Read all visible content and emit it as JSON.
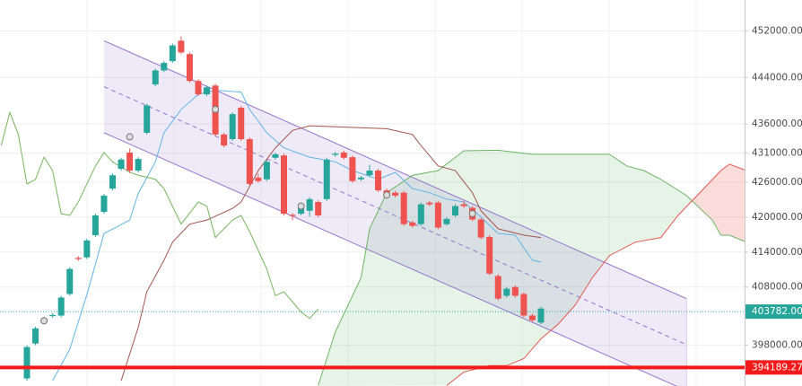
{
  "chart_data": {
    "type": "candlestick",
    "ylim": [
      391000,
      457300
    ],
    "yticks": [
      {
        "value": 452000,
        "label": "452000.00"
      },
      {
        "value": 444000,
        "label": "444000.00"
      },
      {
        "value": 436000,
        "label": "436000.00"
      },
      {
        "value": 431000,
        "label": "431000.00"
      },
      {
        "value": 426000,
        "label": "426000.00"
      },
      {
        "value": 420000,
        "label": "420000.00"
      },
      {
        "value": 414000,
        "label": "414000.00"
      },
      {
        "value": 408000,
        "label": "408000.00"
      },
      {
        "value": 398000,
        "label": "398000.00"
      }
    ],
    "grid": true,
    "up_color": "#26a69a",
    "down_color": "#ef5350",
    "candles": {
      "open": [
        392300,
        398300,
        401900,
        403000,
        403100,
        406800,
        413000,
        413100,
        416900,
        420900,
        424900,
        428300,
        431100,
        428000,
        434500,
        442800,
        445200,
        446800,
        450300,
        448000,
        443400,
        441100,
        442600,
        434200,
        433400,
        438800,
        433400,
        426800,
        426500,
        430200,
        430600,
        420400,
        420600,
        421100,
        422600,
        423100,
        430700,
        431100,
        430300,
        426500,
        427200,
        428000,
        424600,
        424200,
        424200,
        419100,
        418800,
        422500,
        422500,
        418800,
        420300,
        422200,
        421600,
        419600,
        416600,
        409900,
        406500,
        408000,
        406800,
        403100,
        401900
      ],
      "high": [
        398000,
        401200,
        402900,
        403500,
        406500,
        411400,
        413300,
        416300,
        420600,
        424000,
        427500,
        430200,
        431800,
        430300,
        439500,
        445500,
        446800,
        449800,
        451000,
        448300,
        443700,
        442600,
        442900,
        434500,
        438000,
        439100,
        433700,
        427500,
        429800,
        431100,
        430900,
        420700,
        422500,
        423400,
        422900,
        430200,
        431200,
        431400,
        430600,
        427100,
        429000,
        428300,
        424900,
        424500,
        424500,
        419400,
        422500,
        422800,
        422800,
        420000,
        422200,
        422800,
        421900,
        419900,
        416900,
        410200,
        408000,
        408300,
        407100,
        403400,
        404600
      ],
      "low": [
        391900,
        398000,
        401600,
        402700,
        402800,
        406500,
        412500,
        412800,
        416600,
        420600,
        424600,
        428000,
        427600,
        427700,
        434200,
        442500,
        444900,
        446500,
        448000,
        443100,
        440800,
        440800,
        433900,
        432000,
        433100,
        433100,
        425400,
        425900,
        426200,
        429900,
        420300,
        419500,
        420300,
        420100,
        420000,
        422800,
        430400,
        429900,
        425900,
        426200,
        426900,
        424300,
        423400,
        423400,
        418500,
        418200,
        418500,
        421900,
        417900,
        418500,
        420000,
        421600,
        419300,
        416200,
        410000,
        405700,
        406200,
        406200,
        402800,
        402000,
        401600
      ],
      "close": [
        397700,
        400900,
        402600,
        403200,
        406200,
        411100,
        412800,
        416000,
        420300,
        423700,
        427200,
        429900,
        428000,
        430000,
        439200,
        445200,
        446500,
        449500,
        448300,
        443400,
        441100,
        442300,
        434200,
        432300,
        437700,
        433400,
        425700,
        426200,
        429500,
        430800,
        420600,
        420200,
        422200,
        423100,
        420300,
        429900,
        430900,
        430200,
        426200,
        426800,
        428000,
        424600,
        423700,
        423700,
        418800,
        418500,
        422200,
        422200,
        418200,
        419700,
        421900,
        421900,
        419600,
        416500,
        410300,
        406000,
        407700,
        406500,
        403100,
        402300,
        404300
      ]
    },
    "lines": [
      {
        "color": "#62b4e6",
        "x": [
          3,
          5,
          7,
          9,
          12,
          13,
          15,
          16,
          18,
          20,
          22,
          25,
          26,
          28,
          30,
          33,
          36,
          38,
          41,
          43,
          45,
          47,
          49,
          51,
          53,
          55,
          57,
          59,
          60
        ],
        "values": [
          391900,
          397300,
          406700,
          417200,
          419500,
          424100,
          429500,
          434500,
          438500,
          441100,
          441800,
          441500,
          438500,
          434500,
          431900,
          430300,
          429500,
          428000,
          426500,
          427700,
          424900,
          424200,
          423100,
          422600,
          420000,
          417200,
          416900,
          412600,
          412300
        ]
      },
      {
        "color": "#a3554d",
        "x": [
          11,
          13,
          14,
          16,
          17,
          19,
          21,
          24,
          25,
          27,
          29,
          31,
          33,
          42,
          45,
          46,
          48,
          50,
          52,
          53,
          55,
          58,
          60
        ],
        "values": [
          391900,
          401100,
          407200,
          412600,
          415700,
          418800,
          419500,
          421500,
          422600,
          428000,
          431900,
          434900,
          435700,
          435200,
          434200,
          432300,
          428800,
          428000,
          424200,
          421100,
          418000,
          416900,
          416500
        ]
      },
      {
        "color": "#76b45e",
        "x": [
          -3,
          -2,
          -1,
          0,
          1,
          2,
          3,
          4,
          5,
          6,
          8,
          9,
          10,
          12,
          13,
          15,
          16,
          18,
          20,
          21,
          22,
          24,
          25,
          26,
          28,
          29,
          30,
          32,
          33,
          34
        ],
        "values": [
          432300,
          438000,
          434200,
          425700,
          426500,
          430300,
          428000,
          420600,
          420300,
          422600,
          428800,
          431100,
          429500,
          427700,
          427200,
          426500,
          424900,
          418800,
          422600,
          421900,
          416500,
          419500,
          420300,
          417500,
          411100,
          406500,
          407200,
          403700,
          402600,
          404200
        ]
      }
    ],
    "cloud": {
      "span_a": {
        "color": "#6cb562",
        "x": [
          34,
          36,
          39,
          40,
          42,
          45,
          48,
          51,
          55,
          59,
          68,
          70,
          72,
          74,
          77,
          80,
          81,
          82,
          84
        ],
        "values": [
          391100,
          400300,
          409600,
          418000,
          424200,
          427200,
          428000,
          431400,
          431500,
          430800,
          430800,
          428800,
          428000,
          426500,
          423700,
          419500,
          416900,
          416900,
          415700
        ]
      },
      "span_b": {
        "color": "#e3574f",
        "x": [
          49,
          51,
          54,
          56,
          58,
          60,
          62,
          64,
          66,
          68,
          71,
          74,
          76,
          79,
          81,
          82,
          84
        ],
        "values": [
          391100,
          393400,
          394500,
          394500,
          395700,
          399100,
          401600,
          404900,
          409600,
          413400,
          415700,
          416500,
          420300,
          424900,
          428000,
          429100,
          428000
        ]
      },
      "up_color": "rgba(102,187,106,0.16)",
      "down_color": "rgba(244,67,54,0.18)"
    },
    "channel": {
      "x": [
        9,
        77
      ],
      "upper": [
        450300,
        406000
      ],
      "lower": [
        434500,
        390200
      ],
      "color": "#9575cd",
      "fill": "rgba(149,117,205,0.15)"
    },
    "markers": {
      "x": [
        2,
        12,
        22,
        32,
        42,
        52
      ],
      "values": [
        402200,
        433800,
        438500,
        421900,
        423800,
        420600
      ]
    },
    "last_price": {
      "value": 403782,
      "label": "403782.00",
      "color": "#26a69a"
    },
    "level": {
      "value": 394189.27,
      "label": "394189.27",
      "color": "#f21a1a"
    }
  }
}
